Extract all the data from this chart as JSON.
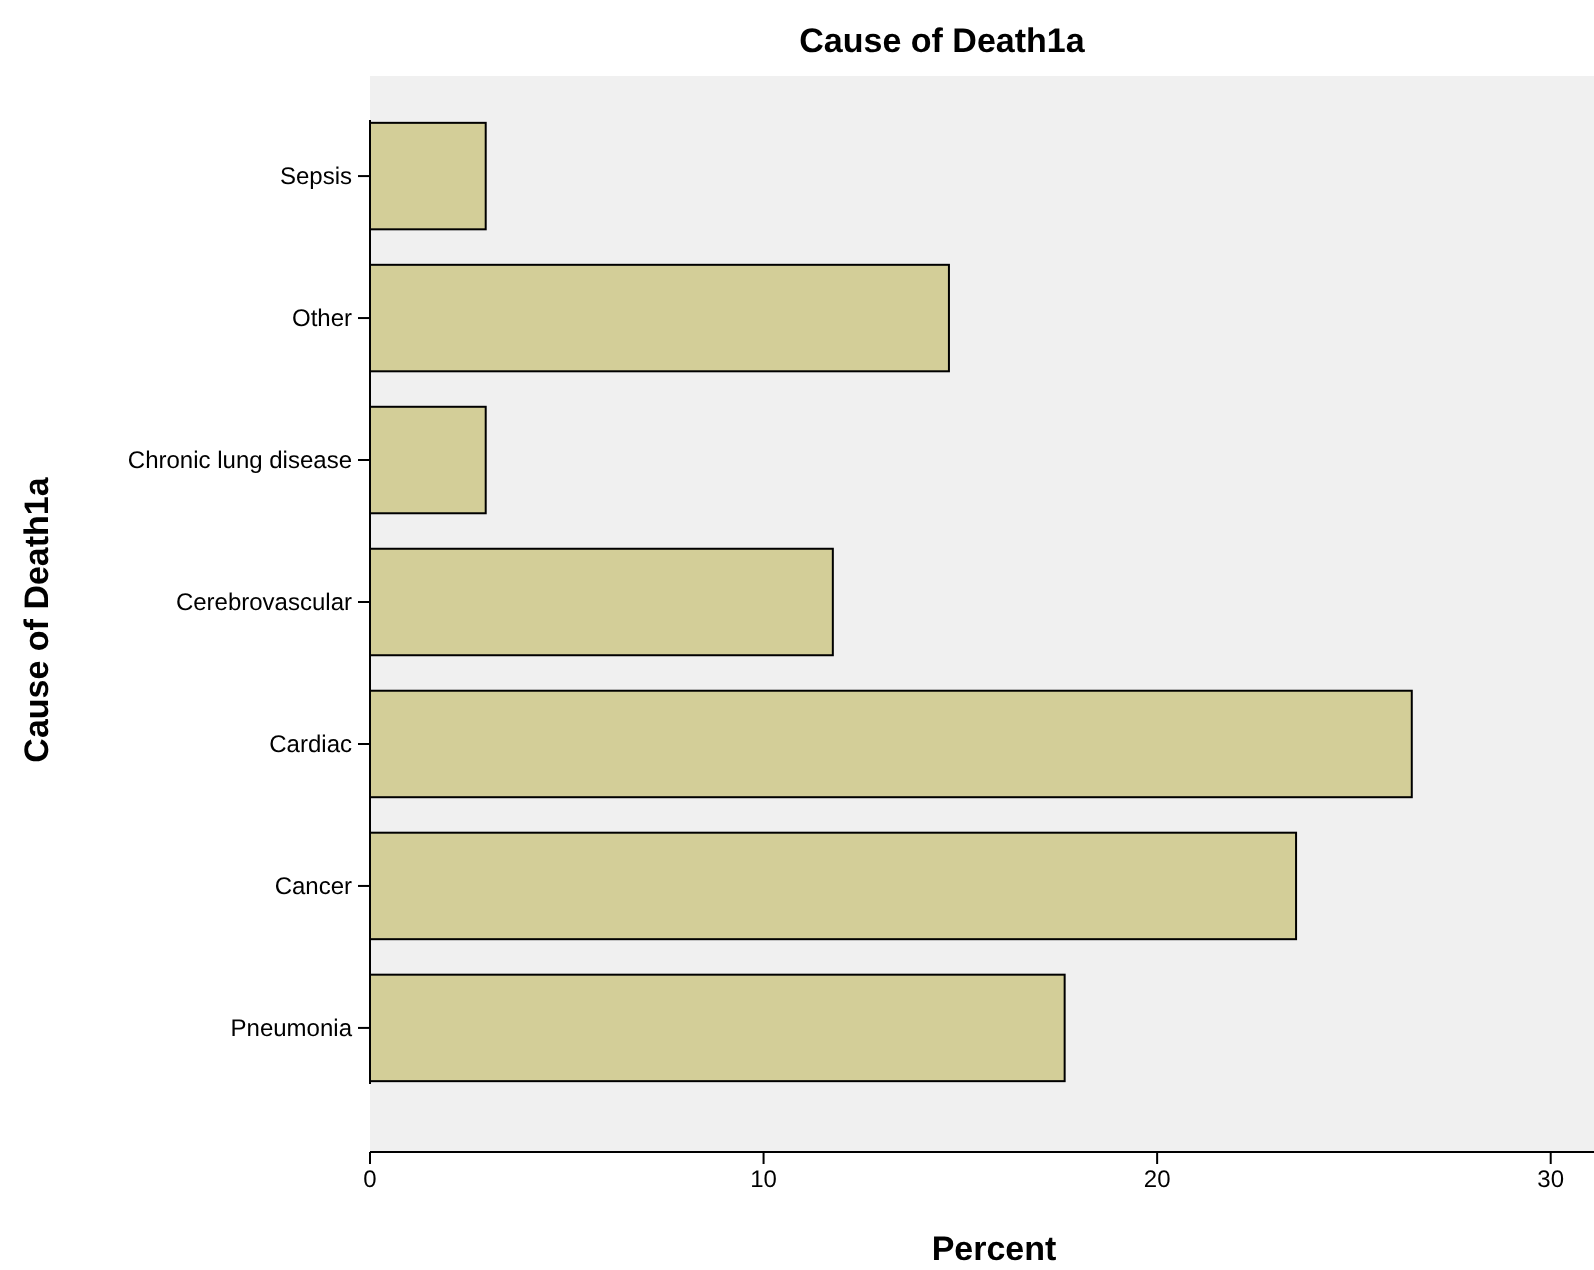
{
  "chart_data": {
    "type": "bar",
    "orientation": "horizontal",
    "title": "Cause of Death1a",
    "xlabel": "Percent",
    "ylabel": "Cause of Death1a",
    "categories": [
      "Sepsis",
      "Other",
      "Chronic lung disease",
      "Cerebrovascular",
      "Cardiac",
      "Cancer",
      "Pneumonia"
    ],
    "values": [
      2.94,
      14.71,
      2.94,
      11.76,
      26.47,
      23.53,
      17.65
    ],
    "color": "#d3ce98",
    "xlim": [
      0,
      31.1
    ],
    "xticks": [
      0,
      10,
      20,
      30
    ],
    "grid": false
  }
}
